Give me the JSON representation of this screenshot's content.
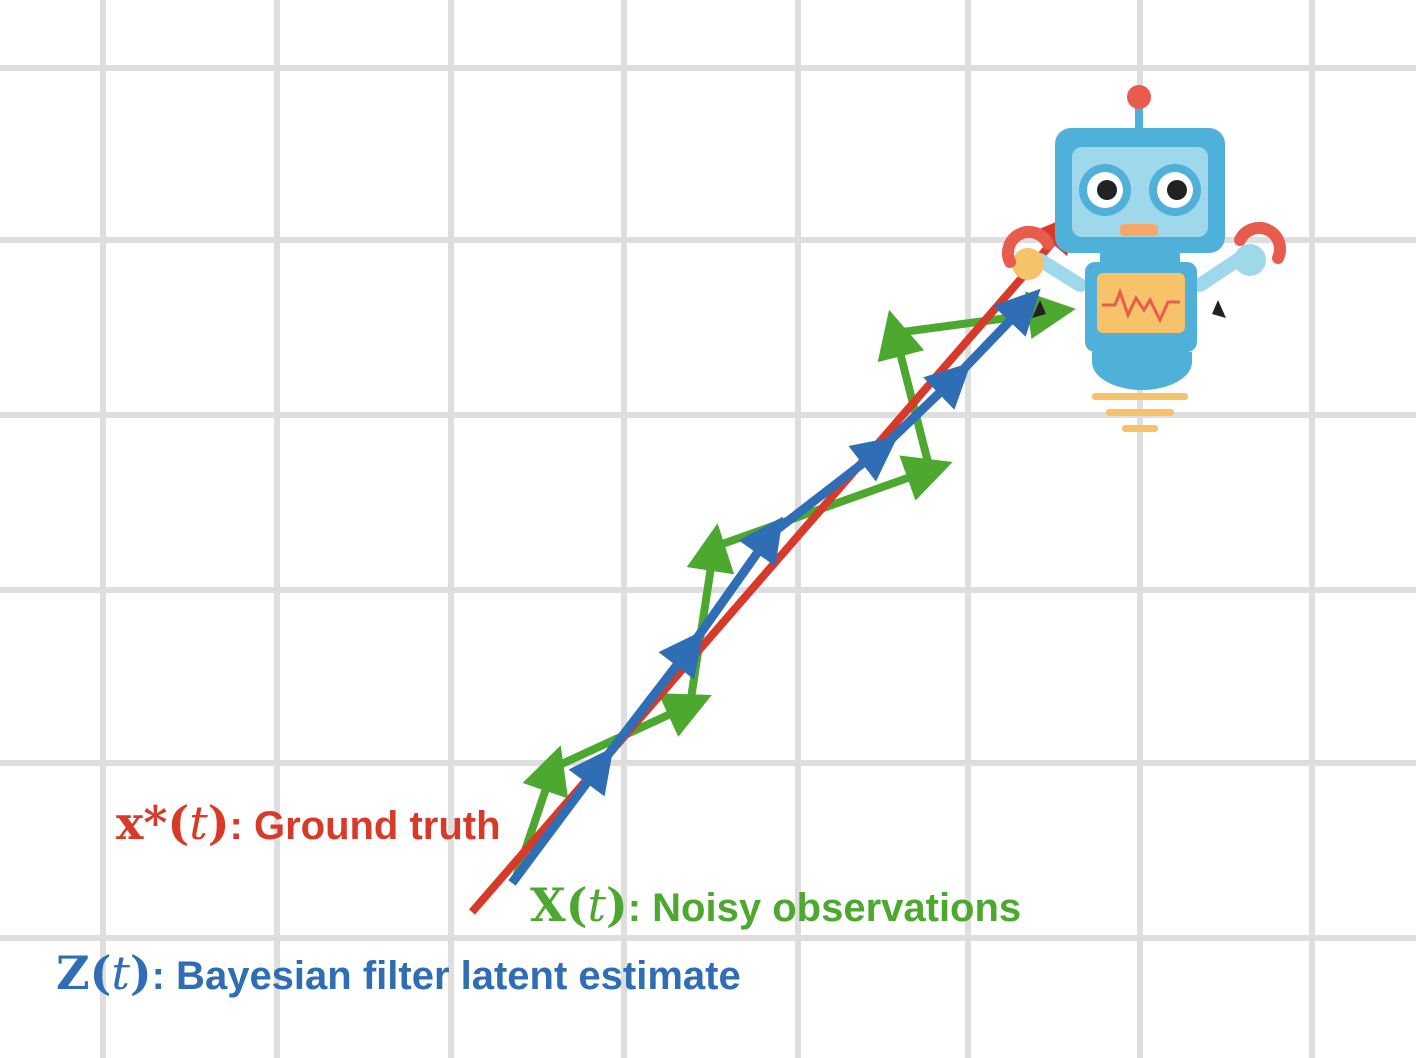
{
  "labels": {
    "ground_truth": {
      "symbol": "x*",
      "arg": "t",
      "text": ": Ground truth"
    },
    "noisy_observations": {
      "symbol": "X",
      "arg": "t",
      "text": ": Noisy observations"
    },
    "latent_estimate": {
      "symbol": "Z",
      "arg": "t",
      "text": ": Bayesian filter latent estimate"
    }
  },
  "colors": {
    "ground_truth": "#d83a2a",
    "noisy_observations": "#4ca82f",
    "latent_estimate": "#2f6db5",
    "grid": "#dedede",
    "robot_body": "#4fb0d9",
    "robot_face": "#9fd8ea",
    "robot_accent": "#e85b4d",
    "robot_screen": "#f6c36a"
  },
  "icons": {
    "robot": "robot-icon"
  }
}
